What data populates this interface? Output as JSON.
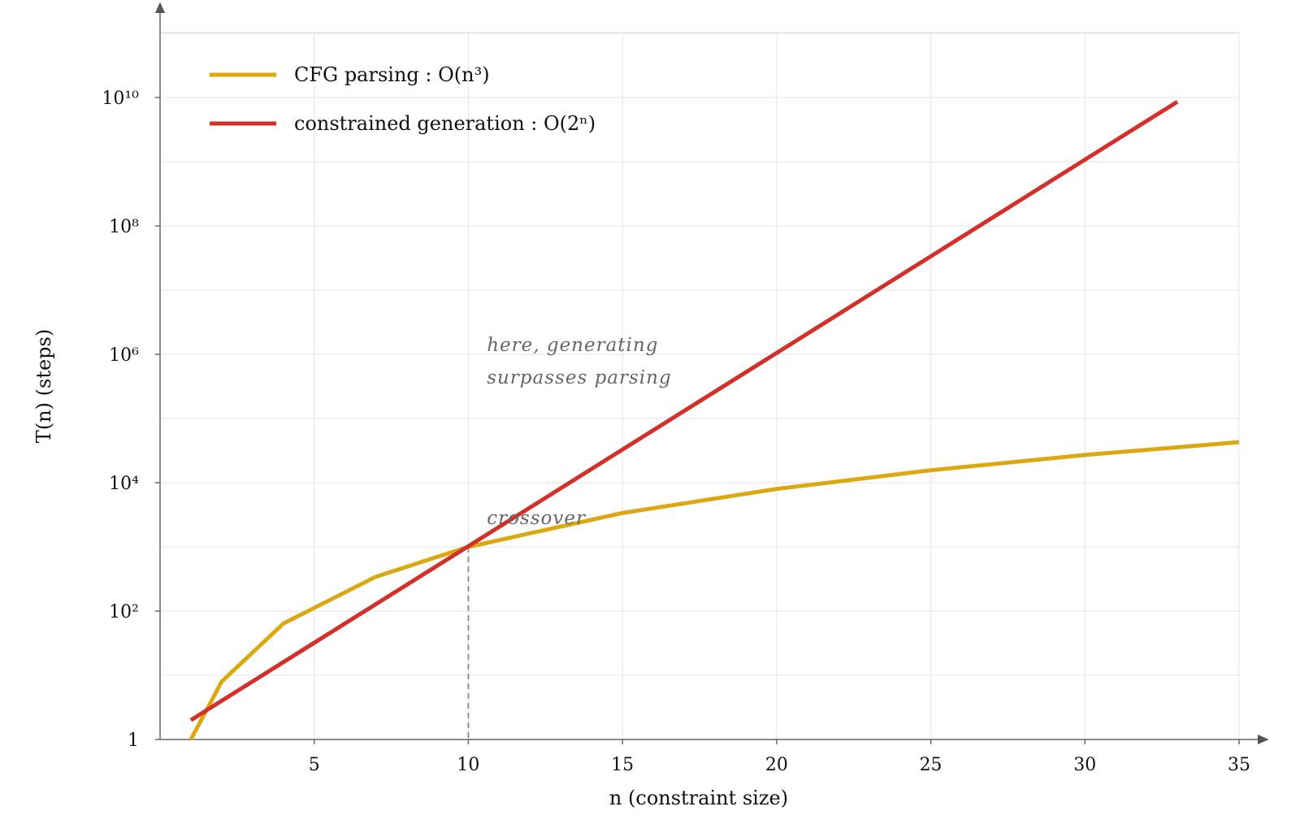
{
  "chart_data": {
    "type": "line",
    "xlabel": "n (constraint size)",
    "ylabel": "T(n) (steps)",
    "xlim": [
      0,
      35
    ],
    "ylim_log10": [
      0,
      10
    ],
    "y_scale": "log",
    "grid": true,
    "legend_position": "top-left",
    "x_ticks": [
      5,
      10,
      15,
      20,
      25,
      30,
      35
    ],
    "x_tick_labels": [
      "5",
      "10",
      "15",
      "20",
      "25",
      "30",
      "35"
    ],
    "y_ticks_log10": [
      0,
      2,
      4,
      6,
      8,
      10
    ],
    "y_tick_labels": [
      "1",
      "10²",
      "10⁴",
      "10⁶",
      "10⁸",
      "10¹⁰"
    ],
    "series": [
      {
        "name": "CFG parsing : O(n³)",
        "color": "#dba812",
        "points": [
          [
            1,
            1
          ],
          [
            2,
            8
          ],
          [
            4,
            64
          ],
          [
            7,
            343
          ],
          [
            10,
            1000
          ],
          [
            15,
            3375
          ],
          [
            20,
            8000
          ],
          [
            25,
            15625
          ],
          [
            30,
            27000
          ],
          [
            35,
            42875
          ]
        ]
      },
      {
        "name": "constrained generation : O(2ⁿ)",
        "color": "#d1312a",
        "points": [
          [
            1,
            2
          ],
          [
            33,
            8589934592
          ]
        ]
      }
    ],
    "annotations": [
      {
        "lines": [
          "here, generating",
          "surpasses parsing"
        ],
        "x": 10.6,
        "y": 1000000
      },
      {
        "lines": [
          "crossover"
        ],
        "x": 10.6,
        "y": 2000
      }
    ],
    "reference_lines": [
      {
        "type": "vertical-dashed",
        "x": 10,
        "y_from": 1,
        "y_to": 1000
      }
    ]
  }
}
